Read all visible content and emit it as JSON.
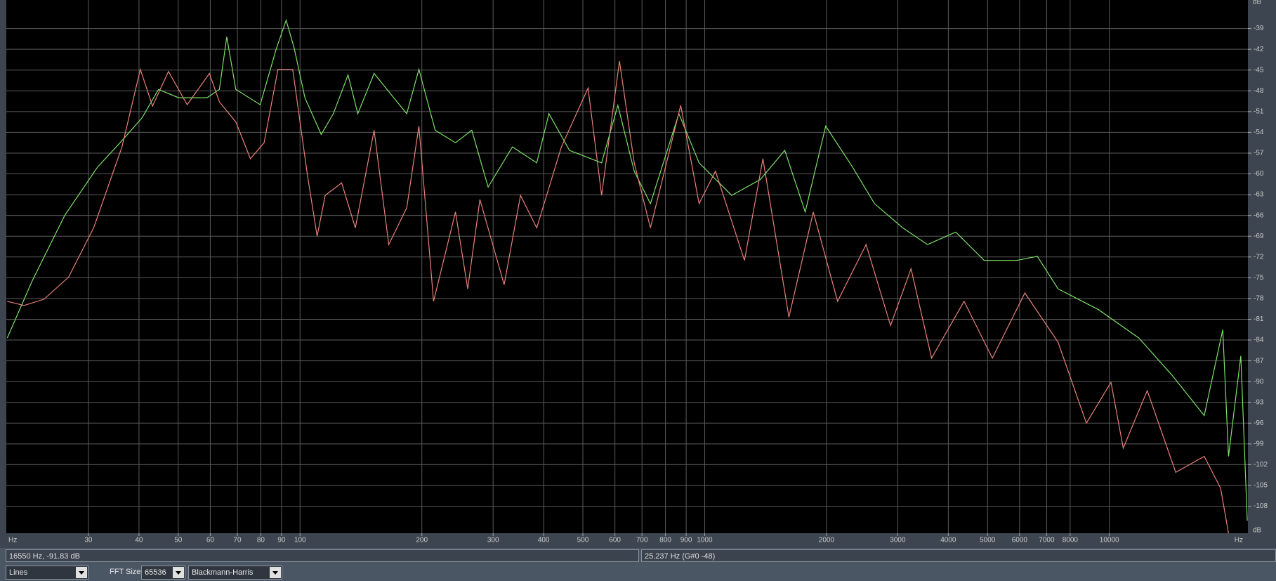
{
  "chart_data": {
    "type": "line",
    "xscale": "log",
    "grid": true,
    "x_unit": "Hz",
    "y_unit": "dB",
    "xlim": [
      18.8,
      22000
    ],
    "ylim": [
      -111.9,
      -36.1
    ],
    "xticks": [
      30,
      40,
      50,
      60,
      70,
      80,
      90,
      100,
      200,
      300,
      400,
      500,
      600,
      700,
      800,
      900,
      1000,
      2000,
      3000,
      4000,
      5000,
      6000,
      7000,
      8000,
      10000
    ],
    "yticks": [
      -39,
      -42,
      -45,
      -48,
      -51,
      -54,
      -57,
      -60,
      -63,
      -66,
      -69,
      -72,
      -75,
      -78,
      -81,
      -84,
      -87,
      -90,
      -93,
      -96,
      -99,
      -102,
      -105,
      -108
    ],
    "series": [
      {
        "color": "#7ee06a",
        "x": [
          18.9,
          21.8,
          26.2,
          31.6,
          36.3,
          40.7,
          44.7,
          50.1,
          58.9,
          63.2,
          65.9,
          69.4,
          79.7,
          87.4,
          92.4,
          96.8,
          102.8,
          112.8,
          120.9,
          131.4,
          138.9,
          152.4,
          167.2,
          183.5,
          196.7,
          215.8,
          242.2,
          265.7,
          291.6,
          334.9,
          384.5,
          412.3,
          463.2,
          556.2,
          610,
          669.5,
          734.5,
          863.3,
          968.8,
          1166,
          1373,
          1577,
          1772,
          1991,
          2318,
          2628,
          3088,
          3554,
          4174,
          4907,
          5904,
          6637,
          7466,
          9398,
          11829,
          14249,
          17160,
          19069,
          19705,
          21126,
          21920
        ],
        "values": [
          -83.7,
          -75.4,
          -66.0,
          -59.0,
          -55.2,
          -51.9,
          -47.8,
          -49.0,
          -49.0,
          -47.8,
          -40.2,
          -47.8,
          -50.0,
          -41.9,
          -37.8,
          -41.9,
          -49.0,
          -54.3,
          -51.3,
          -45.7,
          -51.3,
          -45.5,
          -48.4,
          -51.3,
          -44.9,
          -53.7,
          -55.5,
          -53.7,
          -61.9,
          -56.1,
          -58.4,
          -51.3,
          -56.6,
          -58.4,
          -50.1,
          -59.6,
          -64.3,
          -51.3,
          -58.4,
          -63.1,
          -60.8,
          -56.6,
          -65.5,
          -53.1,
          -59.0,
          -64.3,
          -67.8,
          -70.2,
          -68.4,
          -72.5,
          -72.5,
          -71.9,
          -76.6,
          -79.6,
          -83.7,
          -89.0,
          -94.9,
          -82.5,
          -100.8,
          -86.3,
          -110.1
        ]
      },
      {
        "color": "#e8827a",
        "x": [
          18.9,
          20.8,
          23.3,
          26.8,
          30.9,
          36.3,
          40.3,
          43.2,
          47.3,
          52.6,
          59.7,
          63.2,
          69.4,
          75.4,
          81.5,
          88.2,
          95.9,
          104.3,
          110.2,
          115.4,
          126.7,
          137,
          152.4,
          165.7,
          183.5,
          196.7,
          213.8,
          242.2,
          259.6,
          278.3,
          319.5,
          350.7,
          384.5,
          442.5,
          515,
          556.2,
          615.6,
          669.5,
          734.5,
          872.3,
          968.8,
          1063,
          1254,
          1393,
          1615,
          1855,
          2130,
          2505,
          2879,
          3235,
          3638,
          4375,
          5140,
          6183,
          7466,
          8776,
          10093,
          10826,
          12405,
          14590,
          17160,
          18829,
          19705
        ],
        "values": [
          -78.4,
          -79.0,
          -78.1,
          -74.9,
          -67.8,
          -56.1,
          -44.9,
          -50.2,
          -45.2,
          -50.0,
          -45.5,
          -49.6,
          -52.5,
          -57.8,
          -55.5,
          -44.9,
          -44.9,
          -60.2,
          -69.0,
          -63.1,
          -61.3,
          -67.8,
          -53.7,
          -70.2,
          -64.9,
          -53.1,
          -78.4,
          -65.5,
          -76.6,
          -63.7,
          -76.0,
          -63.1,
          -67.8,
          -56.1,
          -47.6,
          -63.1,
          -43.7,
          -58.4,
          -67.8,
          -50.1,
          -64.3,
          -59.6,
          -72.5,
          -57.8,
          -80.7,
          -65.5,
          -78.4,
          -70.2,
          -81.9,
          -73.7,
          -86.6,
          -78.4,
          -86.6,
          -77.2,
          -84.3,
          -96.0,
          -90.1,
          -99.6,
          -91.3,
          -103.1,
          -100.8,
          -105.4,
          -111.9
        ]
      }
    ]
  },
  "status": {
    "cursor": "16550 Hz, -91.83 dB",
    "peak": "25.237 Hz (G#0 -48)"
  },
  "controls": {
    "display": "Lines",
    "fft_label": "FFT Size",
    "fft_size": "65536",
    "window": "Blackmann-Harris"
  }
}
